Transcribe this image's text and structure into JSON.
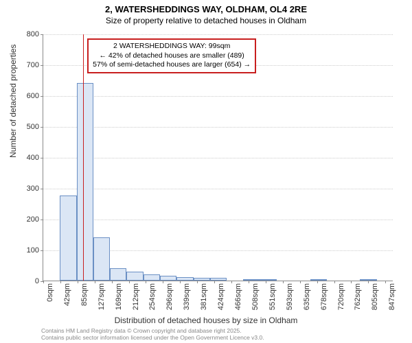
{
  "title": "2, WATERSHEDDINGS WAY, OLDHAM, OL4 2RE",
  "subtitle": "Size of property relative to detached houses in Oldham",
  "ylabel": "Number of detached properties",
  "xlabel": "Distribution of detached houses by size in Oldham",
  "footer_line1": "Contains HM Land Registry data © Crown copyright and database right 2025.",
  "footer_line2": "Contains public sector information licensed under the Open Government Licence v3.0.",
  "chart": {
    "type": "histogram",
    "ylim": [
      0,
      800
    ],
    "ytick_step": 100,
    "xlim": [
      0,
      868
    ],
    "xtick_step": 42.4,
    "xtick_labels": [
      "0sqm",
      "42sqm",
      "85sqm",
      "127sqm",
      "169sqm",
      "212sqm",
      "254sqm",
      "296sqm",
      "339sqm",
      "381sqm",
      "424sqm",
      "466sqm",
      "508sqm",
      "551sqm",
      "593sqm",
      "635sqm",
      "678sqm",
      "720sqm",
      "762sqm",
      "805sqm",
      "847sqm"
    ],
    "bar_fill": "#dbe6f5",
    "bar_stroke": "#6a8fc4",
    "grid_color": "#cccccc",
    "background_color": "#ffffff",
    "values": [
      0,
      275,
      640,
      140,
      40,
      30,
      20,
      15,
      12,
      10,
      8,
      0,
      3,
      3,
      0,
      0,
      3,
      0,
      0,
      3,
      0
    ],
    "marker": {
      "x_value": 99,
      "color": "#c81e1e"
    },
    "infobox": {
      "border_color": "#c81e1e",
      "lines": [
        "2 WATERSHEDDINGS WAY: 99sqm",
        "← 42% of detached houses are smaller (489)",
        "57% of semi-detached houses are larger (654) →"
      ]
    }
  }
}
